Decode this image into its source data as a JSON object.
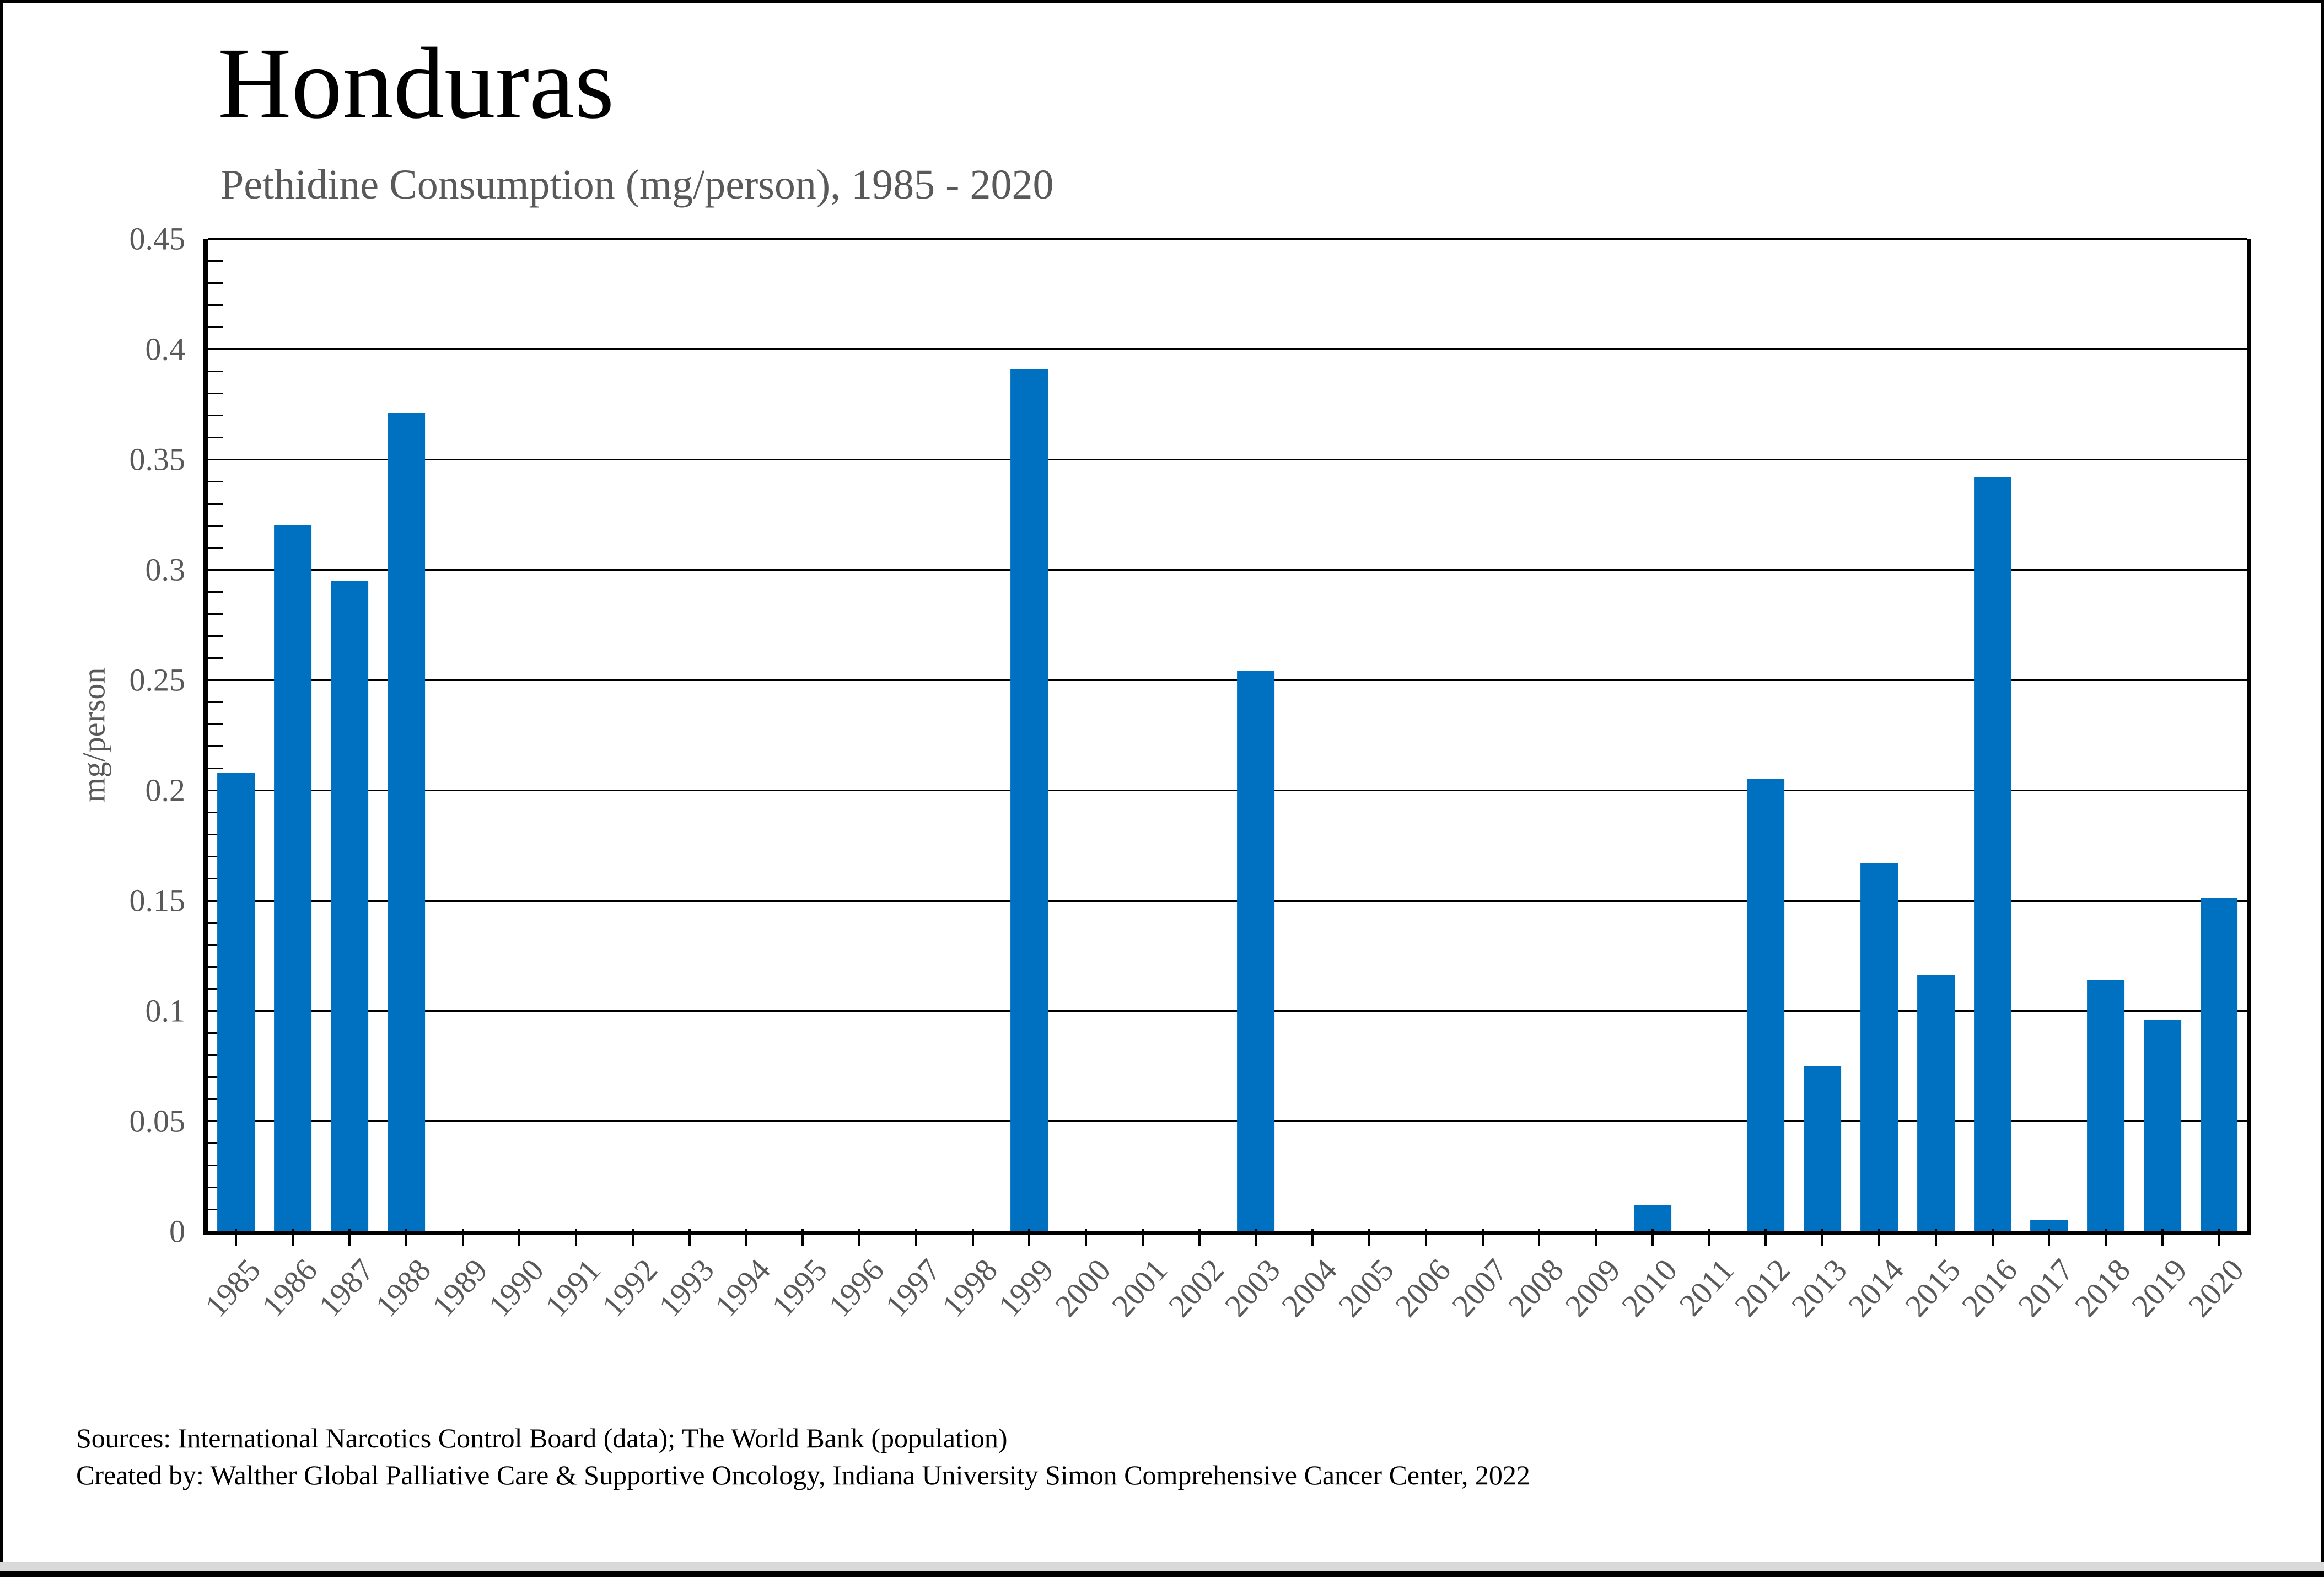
{
  "page": {
    "title": "Honduras",
    "subtitle": "Pethidine Consumption (mg/person), 1985 - 2020"
  },
  "footer": {
    "line1": "Sources: International Narcotics Control Board (data); The World Bank (population)",
    "line2": "Created by: Walther Global Palliative Care & Supportive Oncology, Indiana University Simon Comprehensive Cancer Center, 2022"
  },
  "chart_data": {
    "type": "bar",
    "title": "Honduras",
    "subtitle": "Pethidine Consumption (mg/person), 1985 - 2020",
    "xlabel": "",
    "ylabel": "mg/person",
    "categories": [
      "1985",
      "1986",
      "1987",
      "1988",
      "1989",
      "1990",
      "1991",
      "1992",
      "1993",
      "1994",
      "1995",
      "1996",
      "1997",
      "1998",
      "1999",
      "2000",
      "2001",
      "2002",
      "2003",
      "2004",
      "2005",
      "2006",
      "2007",
      "2008",
      "2009",
      "2010",
      "2011",
      "2012",
      "2013",
      "2014",
      "2015",
      "2016",
      "2017",
      "2018",
      "2019",
      "2020"
    ],
    "values": [
      0.208,
      0.32,
      0.295,
      0.371,
      0,
      0,
      0,
      0,
      0,
      0,
      0,
      0,
      0,
      0,
      0.391,
      0,
      0,
      0,
      0.254,
      0,
      0,
      0,
      0,
      0,
      0,
      0.012,
      0,
      0.205,
      0.075,
      0.167,
      0.116,
      0.342,
      0.005,
      0.114,
      0.096,
      0.151
    ],
    "ylim": [
      0,
      0.45
    ],
    "ytick_interval": 0.05,
    "minor_tick_interval": 0.01,
    "ytick_labels": [
      "0",
      "0.05",
      "0.1",
      "0.15",
      "0.2",
      "0.25",
      "0.3",
      "0.35",
      "0.4",
      "0.45"
    ],
    "grid": "horizontal",
    "legend": "none",
    "bar_color": "#0070C0",
    "axis_color": "#000000",
    "tick_label_color": "#595959",
    "title_color": "#000000",
    "subtitle_color": "#595959"
  }
}
